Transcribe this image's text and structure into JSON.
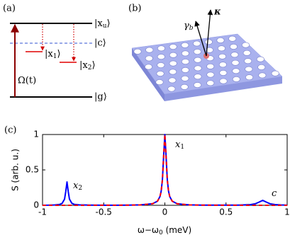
{
  "panel_a": {
    "label": "(a)",
    "top": {
      "pre": "|x",
      "sub": "u",
      "post": "⟩"
    },
    "cavity": "|c⟩",
    "x1": {
      "pre": "|x",
      "sub": "1",
      "post": "⟩"
    },
    "x2": {
      "pre": "|x",
      "sub": "2",
      "post": "⟩"
    },
    "pump": "Ω(t)",
    "ground": "|g⟩"
  },
  "panel_b": {
    "label": "(b)",
    "gamma": {
      "pre": "γ",
      "sub": "b"
    },
    "kappa": "κ"
  },
  "chart_data": {
    "type": "line",
    "label": "(c)",
    "xlabel": {
      "pre": "ω−ω",
      "sub": "0",
      "post": " (meV)"
    },
    "ylabel": "S (arb. u.)",
    "x": [
      -1,
      -0.95,
      -0.9,
      -0.86,
      -0.84,
      -0.82,
      -0.81,
      -0.8,
      -0.79,
      -0.78,
      -0.76,
      -0.74,
      -0.7,
      -0.6,
      -0.5,
      -0.4,
      -0.3,
      -0.2,
      -0.1,
      -0.06,
      -0.04,
      -0.03,
      -0.02,
      -0.01,
      0,
      0.01,
      0.02,
      0.03,
      0.04,
      0.06,
      0.1,
      0.2,
      0.3,
      0.4,
      0.5,
      0.6,
      0.7,
      0.74,
      0.77,
      0.8,
      0.83,
      0.86,
      0.9,
      0.95,
      1
    ],
    "series": [
      {
        "color": "#0000ff",
        "style": "solid",
        "values": [
          0.001,
          0.002,
          0.005,
          0.013,
          0.027,
          0.088,
          0.196,
          0.33,
          0.196,
          0.088,
          0.028,
          0.013,
          0.006,
          0.002,
          0.001,
          0.0015,
          0.003,
          0.006,
          0.022,
          0.059,
          0.123,
          0.2,
          0.36,
          0.692,
          1,
          0.692,
          0.36,
          0.2,
          0.123,
          0.059,
          0.022,
          0.006,
          0.003,
          0.002,
          0.002,
          0.003,
          0.01,
          0.022,
          0.045,
          0.07,
          0.045,
          0.022,
          0.01,
          0.005,
          0.003
        ]
      },
      {
        "color": "#ff0000",
        "style": "dashed",
        "values": [
          0.0002,
          0.0003,
          0.0003,
          0.0003,
          0.0003,
          0.0003,
          0.0003,
          0.0004,
          0.0004,
          0.0004,
          0.0004,
          0.0004,
          0.0005,
          0.0006,
          0.0009,
          0.0014,
          0.0025,
          0.0056,
          0.022,
          0.059,
          0.123,
          0.2,
          0.36,
          0.692,
          1,
          0.692,
          0.36,
          0.2,
          0.123,
          0.059,
          0.022,
          0.0056,
          0.0025,
          0.0014,
          0.0009,
          0.0006,
          0.0005,
          0.0004,
          0.0004,
          0.0004,
          0.0003,
          0.0003,
          0.0003,
          0.0003,
          0.0002
        ]
      }
    ],
    "xlim": [
      -1,
      1
    ],
    "ylim": [
      0,
      1
    ],
    "xticks": [
      -1,
      -0.5,
      0,
      0.5,
      1
    ],
    "yticks": [
      0,
      0.5,
      1
    ],
    "annotations": [
      {
        "base": "x",
        "sub": "2"
      },
      {
        "base": "x",
        "sub": "1"
      },
      {
        "base": "c"
      }
    ]
  }
}
